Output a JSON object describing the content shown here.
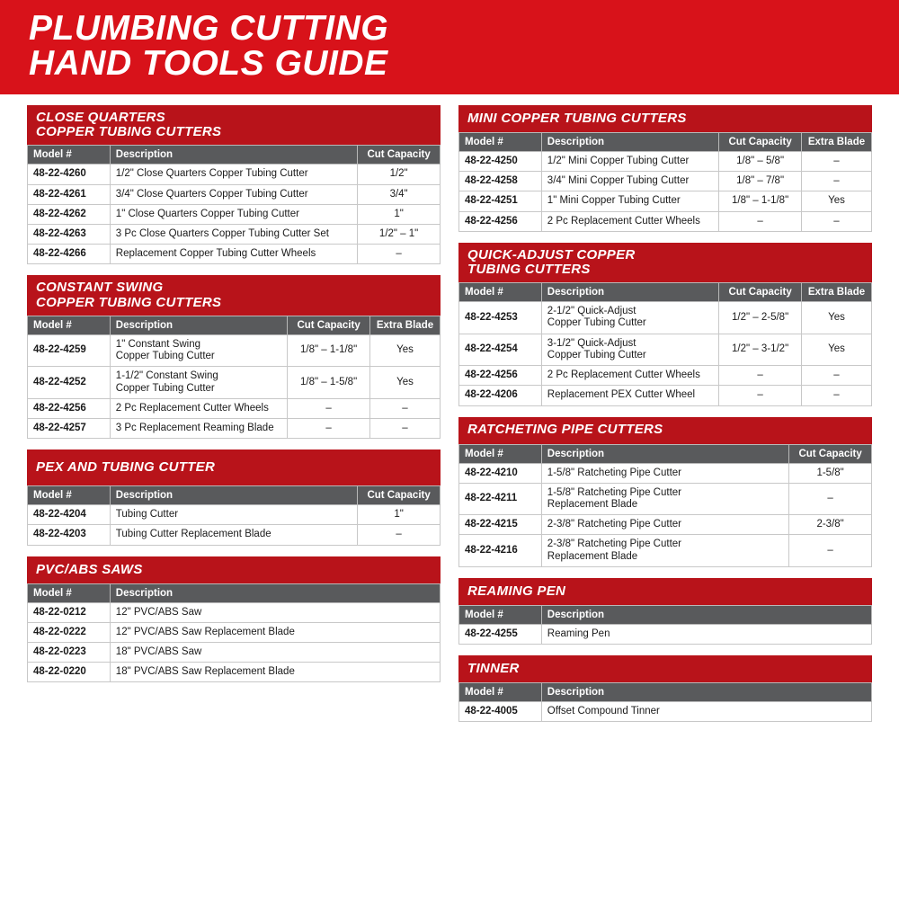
{
  "title_line1": "PLUMBING CUTTING",
  "title_line2": "HAND TOOLS GUIDE",
  "colors": {
    "brand_red": "#d8121a",
    "section_red": "#b8131a",
    "header_gray": "#595a5c",
    "border_gray": "#c8c8c8",
    "text": "#1a1a1a",
    "white": "#ffffff"
  },
  "labels": {
    "model": "Model #",
    "description": "Description",
    "cut_capacity": "Cut Capacity",
    "extra_blade": "Extra Blade"
  },
  "sections": {
    "close_quarters": {
      "title": "CLOSE QUARTERS\nCOPPER TUBING CUTTERS",
      "columns": [
        "model",
        "description",
        "cut_capacity"
      ],
      "rows": [
        {
          "model": "48-22-4260",
          "description": "1/2\" Close Quarters Copper Tubing Cutter",
          "cut_capacity": "1/2\""
        },
        {
          "model": "48-22-4261",
          "description": "3/4\" Close Quarters Copper Tubing Cutter",
          "cut_capacity": "3/4\""
        },
        {
          "model": "48-22-4262",
          "description": "1\" Close Quarters Copper Tubing Cutter",
          "cut_capacity": "1\""
        },
        {
          "model": "48-22-4263",
          "description": "3 Pc Close Quarters Copper Tubing Cutter Set",
          "cut_capacity": "1/2\" – 1\""
        },
        {
          "model": "48-22-4266",
          "description": "Replacement Copper Tubing Cutter Wheels",
          "cut_capacity": "–"
        }
      ]
    },
    "constant_swing": {
      "title": "CONSTANT SWING\nCOPPER TUBING CUTTERS",
      "columns": [
        "model",
        "description",
        "cut_capacity",
        "extra_blade"
      ],
      "rows": [
        {
          "model": "48-22-4259",
          "description": "1\" Constant Swing\nCopper Tubing Cutter",
          "cut_capacity": "1/8\" – 1-1/8\"",
          "extra_blade": "Yes"
        },
        {
          "model": "48-22-4252",
          "description": "1-1/2\" Constant Swing\nCopper Tubing Cutter",
          "cut_capacity": "1/8\" – 1-5/8\"",
          "extra_blade": "Yes"
        },
        {
          "model": "48-22-4256",
          "description": "2 Pc Replacement Cutter Wheels",
          "cut_capacity": "–",
          "extra_blade": "–"
        },
        {
          "model": "48-22-4257",
          "description": "3 Pc Replacement Reaming Blade",
          "cut_capacity": "–",
          "extra_blade": "–"
        }
      ]
    },
    "pex": {
      "title": "PEX AND TUBING CUTTER",
      "columns": [
        "model",
        "description",
        "cut_capacity"
      ],
      "rows": [
        {
          "model": "48-22-4204",
          "description": "Tubing Cutter",
          "cut_capacity": "1\""
        },
        {
          "model": "48-22-4203",
          "description": "Tubing Cutter Replacement Blade",
          "cut_capacity": "–"
        }
      ]
    },
    "pvc_abs": {
      "title": "PVC/ABS SAWS",
      "columns": [
        "model",
        "description"
      ],
      "rows": [
        {
          "model": "48-22-0212",
          "description": "12\" PVC/ABS Saw"
        },
        {
          "model": "48-22-0222",
          "description": "12\" PVC/ABS Saw Replacement Blade"
        },
        {
          "model": "48-22-0223",
          "description": "18\" PVC/ABS Saw"
        },
        {
          "model": "48-22-0220",
          "description": "18\" PVC/ABS Saw Replacement Blade"
        }
      ]
    },
    "mini_copper": {
      "title": "MINI COPPER TUBING CUTTERS",
      "columns": [
        "model",
        "description",
        "cut_capacity",
        "extra_blade"
      ],
      "rows": [
        {
          "model": "48-22-4250",
          "description": "1/2\" Mini Copper Tubing Cutter",
          "cut_capacity": "1/8\" – 5/8\"",
          "extra_blade": "–"
        },
        {
          "model": "48-22-4258",
          "description": "3/4\" Mini Copper Tubing Cutter",
          "cut_capacity": "1/8\" – 7/8\"",
          "extra_blade": "–"
        },
        {
          "model": "48-22-4251",
          "description": "1\" Mini Copper Tubing Cutter",
          "cut_capacity": "1/8\" – 1-1/8\"",
          "extra_blade": "Yes"
        },
        {
          "model": "48-22-4256",
          "description": "2 Pc Replacement Cutter Wheels",
          "cut_capacity": "–",
          "extra_blade": "–"
        }
      ]
    },
    "quick_adjust": {
      "title": "QUICK-ADJUST COPPER\nTUBING CUTTERS",
      "columns": [
        "model",
        "description",
        "cut_capacity",
        "extra_blade"
      ],
      "rows": [
        {
          "model": "48-22-4253",
          "description": "2-1/2\" Quick-Adjust\nCopper Tubing Cutter",
          "cut_capacity": "1/2\" – 2-5/8\"",
          "extra_blade": "Yes"
        },
        {
          "model": "48-22-4254",
          "description": "3-1/2\" Quick-Adjust\nCopper Tubing Cutter",
          "cut_capacity": "1/2\" – 3-1/2\"",
          "extra_blade": "Yes"
        },
        {
          "model": "48-22-4256",
          "description": "2 Pc Replacement Cutter Wheels",
          "cut_capacity": "–",
          "extra_blade": "–"
        },
        {
          "model": "48-22-4206",
          "description": "Replacement PEX Cutter Wheel",
          "cut_capacity": "–",
          "extra_blade": "–"
        }
      ]
    },
    "ratcheting": {
      "title": "RATCHETING PIPE CUTTERS",
      "columns": [
        "model",
        "description",
        "cut_capacity"
      ],
      "rows": [
        {
          "model": "48-22-4210",
          "description": "1-5/8\" Ratcheting Pipe Cutter",
          "cut_capacity": "1-5/8\""
        },
        {
          "model": "48-22-4211",
          "description": "1-5/8\" Ratcheting Pipe Cutter\nReplacement Blade",
          "cut_capacity": "–"
        },
        {
          "model": "48-22-4215",
          "description": "2-3/8\" Ratcheting Pipe Cutter",
          "cut_capacity": "2-3/8\""
        },
        {
          "model": "48-22-4216",
          "description": "2-3/8\" Ratcheting Pipe Cutter\nReplacement Blade",
          "cut_capacity": "–"
        }
      ]
    },
    "reaming_pen": {
      "title": "REAMING PEN",
      "columns": [
        "model",
        "description"
      ],
      "rows": [
        {
          "model": "48-22-4255",
          "description": "Reaming Pen"
        }
      ]
    },
    "tinner": {
      "title": "TINNER",
      "columns": [
        "model",
        "description"
      ],
      "rows": [
        {
          "model": "48-22-4005",
          "description": "Offset Compound Tinner"
        }
      ]
    }
  },
  "layout": {
    "left_column": [
      "close_quarters",
      "constant_swing",
      "pex",
      "pvc_abs"
    ],
    "right_column": [
      "mini_copper",
      "quick_adjust",
      "ratcheting",
      "reaming_pen",
      "tinner"
    ]
  },
  "column_widths": {
    "model": "20%",
    "cut_capacity": "20%",
    "extra_blade": "17%"
  },
  "title_heights": {
    "close_quarters": 44,
    "constant_swing": 44,
    "pex": 40,
    "pvc_abs": 30,
    "mini_copper": 30,
    "quick_adjust": 44,
    "ratcheting": 30,
    "reaming_pen": 30,
    "tinner": 30
  }
}
